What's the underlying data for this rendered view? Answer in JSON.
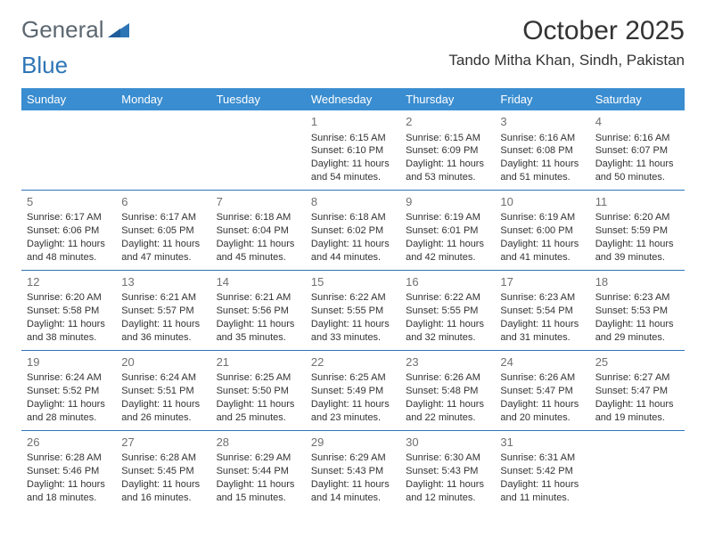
{
  "brand": {
    "part1": "General",
    "part2": "Blue"
  },
  "title": "October 2025",
  "location": "Tando Mitha Khan, Sindh, Pakistan",
  "colors": {
    "header_bg": "#3a8dd0",
    "header_text": "#ffffff",
    "border": "#2e75b6",
    "daynum": "#707070",
    "text": "#333333",
    "logo_gray": "#5c6770",
    "logo_blue": "#2e75b6",
    "page_bg": "#ffffff"
  },
  "dayHeaders": [
    "Sunday",
    "Monday",
    "Tuesday",
    "Wednesday",
    "Thursday",
    "Friday",
    "Saturday"
  ],
  "weeks": [
    [
      null,
      null,
      null,
      {
        "n": "1",
        "sr": "Sunrise: 6:15 AM",
        "ss": "Sunset: 6:10 PM",
        "d1": "Daylight: 11 hours",
        "d2": "and 54 minutes."
      },
      {
        "n": "2",
        "sr": "Sunrise: 6:15 AM",
        "ss": "Sunset: 6:09 PM",
        "d1": "Daylight: 11 hours",
        "d2": "and 53 minutes."
      },
      {
        "n": "3",
        "sr": "Sunrise: 6:16 AM",
        "ss": "Sunset: 6:08 PM",
        "d1": "Daylight: 11 hours",
        "d2": "and 51 minutes."
      },
      {
        "n": "4",
        "sr": "Sunrise: 6:16 AM",
        "ss": "Sunset: 6:07 PM",
        "d1": "Daylight: 11 hours",
        "d2": "and 50 minutes."
      }
    ],
    [
      {
        "n": "5",
        "sr": "Sunrise: 6:17 AM",
        "ss": "Sunset: 6:06 PM",
        "d1": "Daylight: 11 hours",
        "d2": "and 48 minutes."
      },
      {
        "n": "6",
        "sr": "Sunrise: 6:17 AM",
        "ss": "Sunset: 6:05 PM",
        "d1": "Daylight: 11 hours",
        "d2": "and 47 minutes."
      },
      {
        "n": "7",
        "sr": "Sunrise: 6:18 AM",
        "ss": "Sunset: 6:04 PM",
        "d1": "Daylight: 11 hours",
        "d2": "and 45 minutes."
      },
      {
        "n": "8",
        "sr": "Sunrise: 6:18 AM",
        "ss": "Sunset: 6:02 PM",
        "d1": "Daylight: 11 hours",
        "d2": "and 44 minutes."
      },
      {
        "n": "9",
        "sr": "Sunrise: 6:19 AM",
        "ss": "Sunset: 6:01 PM",
        "d1": "Daylight: 11 hours",
        "d2": "and 42 minutes."
      },
      {
        "n": "10",
        "sr": "Sunrise: 6:19 AM",
        "ss": "Sunset: 6:00 PM",
        "d1": "Daylight: 11 hours",
        "d2": "and 41 minutes."
      },
      {
        "n": "11",
        "sr": "Sunrise: 6:20 AM",
        "ss": "Sunset: 5:59 PM",
        "d1": "Daylight: 11 hours",
        "d2": "and 39 minutes."
      }
    ],
    [
      {
        "n": "12",
        "sr": "Sunrise: 6:20 AM",
        "ss": "Sunset: 5:58 PM",
        "d1": "Daylight: 11 hours",
        "d2": "and 38 minutes."
      },
      {
        "n": "13",
        "sr": "Sunrise: 6:21 AM",
        "ss": "Sunset: 5:57 PM",
        "d1": "Daylight: 11 hours",
        "d2": "and 36 minutes."
      },
      {
        "n": "14",
        "sr": "Sunrise: 6:21 AM",
        "ss": "Sunset: 5:56 PM",
        "d1": "Daylight: 11 hours",
        "d2": "and 35 minutes."
      },
      {
        "n": "15",
        "sr": "Sunrise: 6:22 AM",
        "ss": "Sunset: 5:55 PM",
        "d1": "Daylight: 11 hours",
        "d2": "and 33 minutes."
      },
      {
        "n": "16",
        "sr": "Sunrise: 6:22 AM",
        "ss": "Sunset: 5:55 PM",
        "d1": "Daylight: 11 hours",
        "d2": "and 32 minutes."
      },
      {
        "n": "17",
        "sr": "Sunrise: 6:23 AM",
        "ss": "Sunset: 5:54 PM",
        "d1": "Daylight: 11 hours",
        "d2": "and 31 minutes."
      },
      {
        "n": "18",
        "sr": "Sunrise: 6:23 AM",
        "ss": "Sunset: 5:53 PM",
        "d1": "Daylight: 11 hours",
        "d2": "and 29 minutes."
      }
    ],
    [
      {
        "n": "19",
        "sr": "Sunrise: 6:24 AM",
        "ss": "Sunset: 5:52 PM",
        "d1": "Daylight: 11 hours",
        "d2": "and 28 minutes."
      },
      {
        "n": "20",
        "sr": "Sunrise: 6:24 AM",
        "ss": "Sunset: 5:51 PM",
        "d1": "Daylight: 11 hours",
        "d2": "and 26 minutes."
      },
      {
        "n": "21",
        "sr": "Sunrise: 6:25 AM",
        "ss": "Sunset: 5:50 PM",
        "d1": "Daylight: 11 hours",
        "d2": "and 25 minutes."
      },
      {
        "n": "22",
        "sr": "Sunrise: 6:25 AM",
        "ss": "Sunset: 5:49 PM",
        "d1": "Daylight: 11 hours",
        "d2": "and 23 minutes."
      },
      {
        "n": "23",
        "sr": "Sunrise: 6:26 AM",
        "ss": "Sunset: 5:48 PM",
        "d1": "Daylight: 11 hours",
        "d2": "and 22 minutes."
      },
      {
        "n": "24",
        "sr": "Sunrise: 6:26 AM",
        "ss": "Sunset: 5:47 PM",
        "d1": "Daylight: 11 hours",
        "d2": "and 20 minutes."
      },
      {
        "n": "25",
        "sr": "Sunrise: 6:27 AM",
        "ss": "Sunset: 5:47 PM",
        "d1": "Daylight: 11 hours",
        "d2": "and 19 minutes."
      }
    ],
    [
      {
        "n": "26",
        "sr": "Sunrise: 6:28 AM",
        "ss": "Sunset: 5:46 PM",
        "d1": "Daylight: 11 hours",
        "d2": "and 18 minutes."
      },
      {
        "n": "27",
        "sr": "Sunrise: 6:28 AM",
        "ss": "Sunset: 5:45 PM",
        "d1": "Daylight: 11 hours",
        "d2": "and 16 minutes."
      },
      {
        "n": "28",
        "sr": "Sunrise: 6:29 AM",
        "ss": "Sunset: 5:44 PM",
        "d1": "Daylight: 11 hours",
        "d2": "and 15 minutes."
      },
      {
        "n": "29",
        "sr": "Sunrise: 6:29 AM",
        "ss": "Sunset: 5:43 PM",
        "d1": "Daylight: 11 hours",
        "d2": "and 14 minutes."
      },
      {
        "n": "30",
        "sr": "Sunrise: 6:30 AM",
        "ss": "Sunset: 5:43 PM",
        "d1": "Daylight: 11 hours",
        "d2": "and 12 minutes."
      },
      {
        "n": "31",
        "sr": "Sunrise: 6:31 AM",
        "ss": "Sunset: 5:42 PM",
        "d1": "Daylight: 11 hours",
        "d2": "and 11 minutes."
      },
      null
    ]
  ]
}
